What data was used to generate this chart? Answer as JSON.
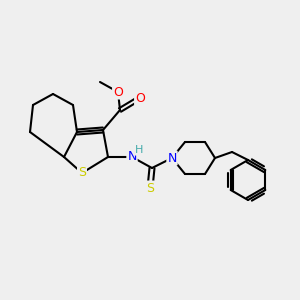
{
  "bg_color": "#efefef",
  "atom_colors": {
    "S": "#cccc00",
    "O": "#ff0000",
    "N": "#0000ff",
    "H": "#44aaaa",
    "C": "#000000"
  },
  "figsize": [
    3.0,
    3.0
  ],
  "dpi": 100
}
